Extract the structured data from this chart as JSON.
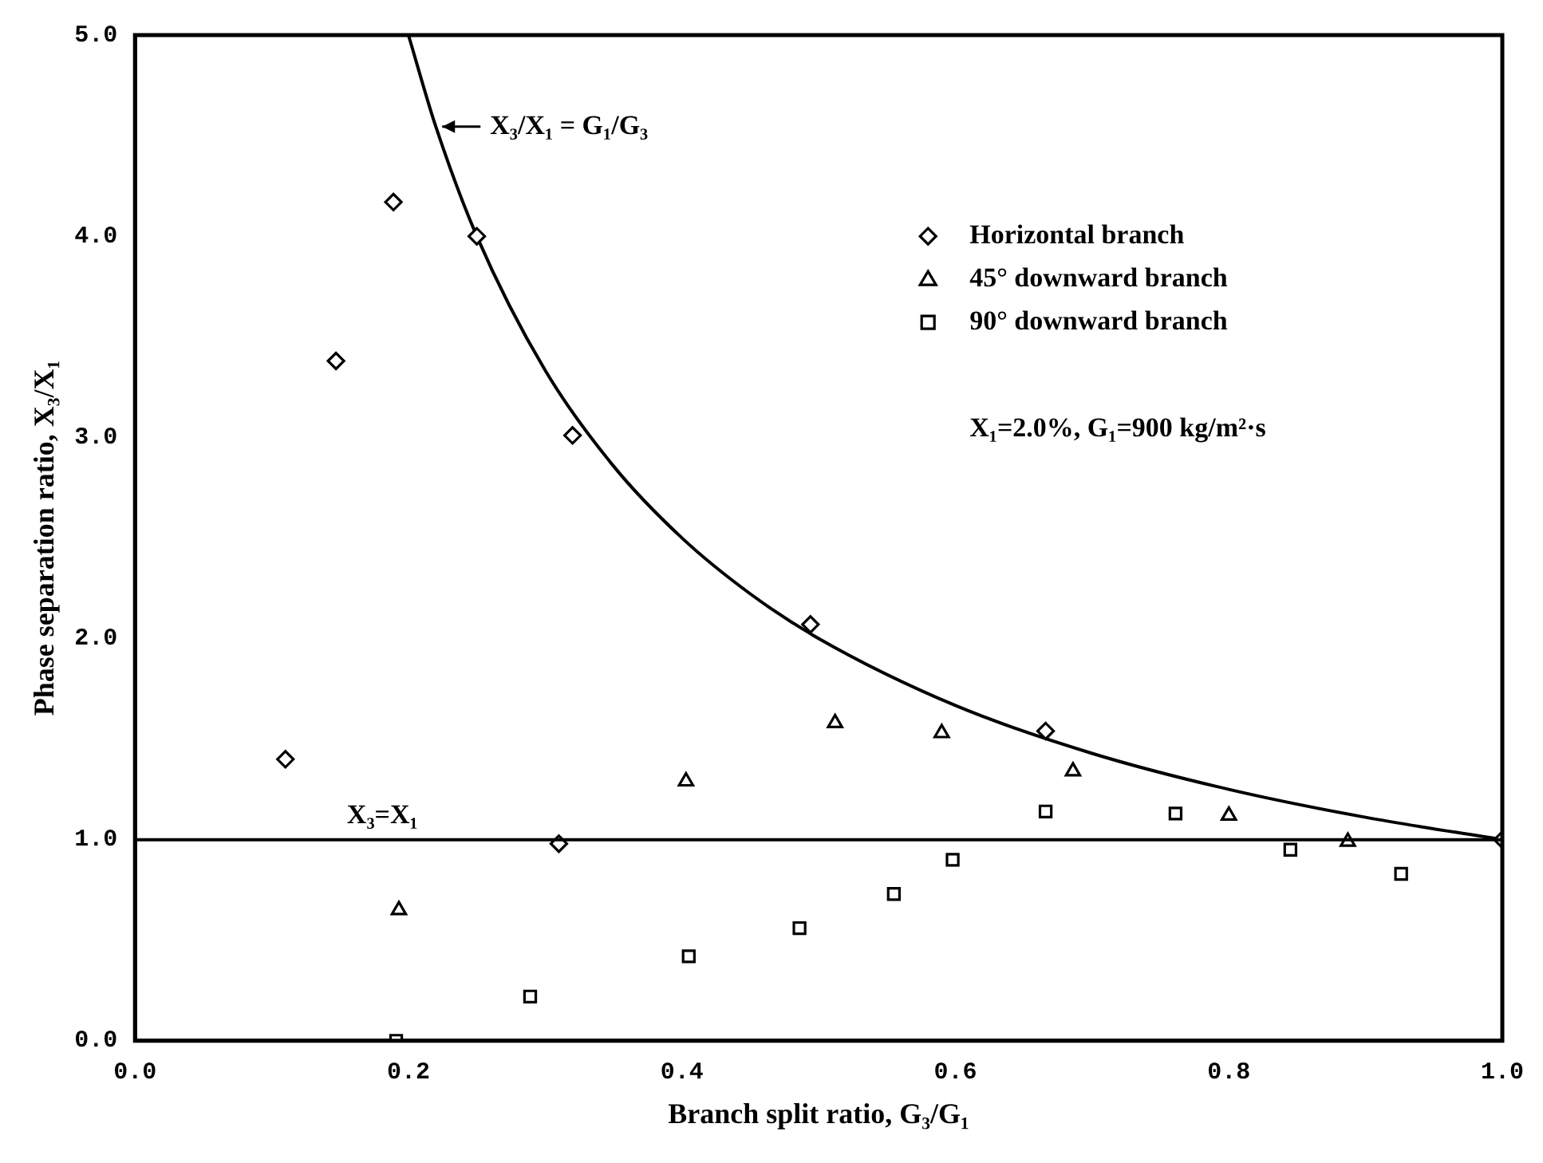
{
  "chart_data": {
    "type": "scatter",
    "xlabel": "Branch split ratio, G₃/G₁",
    "ylabel": "Phase separation ratio, X₃/X₁",
    "xlim": [
      0,
      1.0
    ],
    "xticks": [
      {
        "value": 0,
        "label": "0.0"
      },
      {
        "value": 0.2,
        "label": "0.2"
      },
      {
        "value": 0.4,
        "label": "0.4"
      },
      {
        "value": 0.6,
        "label": "0.6"
      },
      {
        "value": 0.8,
        "label": "0.8"
      },
      {
        "value": 1.0,
        "label": "1.0"
      }
    ],
    "ylim": [
      0,
      5.0
    ],
    "yticks": [
      {
        "value": 0,
        "label": "0.0"
      },
      {
        "value": 1,
        "label": "1.0"
      },
      {
        "value": 2,
        "label": "2.0"
      },
      {
        "value": 3,
        "label": "3.0"
      },
      {
        "value": 4,
        "label": "4.0"
      },
      {
        "value": 5,
        "label": "5.0"
      }
    ],
    "grid": false,
    "legend": "top right",
    "series": [
      {
        "name": "Horizontal branch",
        "marker": "diamond",
        "color": "#000000",
        "x": [
          0.11,
          0.147,
          0.189,
          0.25,
          0.32,
          0.31,
          0.494,
          0.666,
          1.0
        ],
        "values": [
          1.4,
          3.38,
          4.17,
          4.0,
          3.01,
          0.98,
          2.07,
          1.54,
          1.0
        ]
      },
      {
        "name": "45° downward branch",
        "marker": "triangle",
        "color": "#000000",
        "x": [
          0.193,
          0.403,
          0.512,
          0.59,
          0.686,
          0.8,
          0.887
        ],
        "values": [
          0.65,
          1.29,
          1.58,
          1.53,
          1.34,
          1.12,
          0.99
        ]
      },
      {
        "name": "90° downward branch",
        "marker": "square",
        "color": "#000000",
        "x": [
          0.191,
          0.289,
          0.405,
          0.486,
          0.555,
          0.598,
          0.666,
          0.761,
          0.845,
          0.926
        ],
        "values": [
          0.0,
          0.22,
          0.42,
          0.56,
          0.73,
          0.9,
          1.14,
          1.13,
          0.95,
          0.83
        ]
      },
      {
        "name": "X₃/X₁ = G₁/G₃",
        "type": "line",
        "marker": "none",
        "color": "#000000",
        "x": [
          0.2,
          0.22,
          0.25,
          0.3,
          0.35,
          0.4,
          0.45,
          0.5,
          0.6,
          0.7,
          0.8,
          0.9,
          1.0
        ],
        "values": [
          5.0,
          4.545,
          4.0,
          3.333,
          2.857,
          2.5,
          2.222,
          2.0,
          1.667,
          1.429,
          1.25,
          1.111,
          1.0
        ]
      }
    ],
    "ref_lines": [
      {
        "axis": "y",
        "value": 1.0,
        "label": "X₃=X₁",
        "color": "#000000",
        "line_style": "solid"
      }
    ],
    "annotations": [
      "X₁=2.0%, G₁=900 kg/m²·s"
    ]
  }
}
